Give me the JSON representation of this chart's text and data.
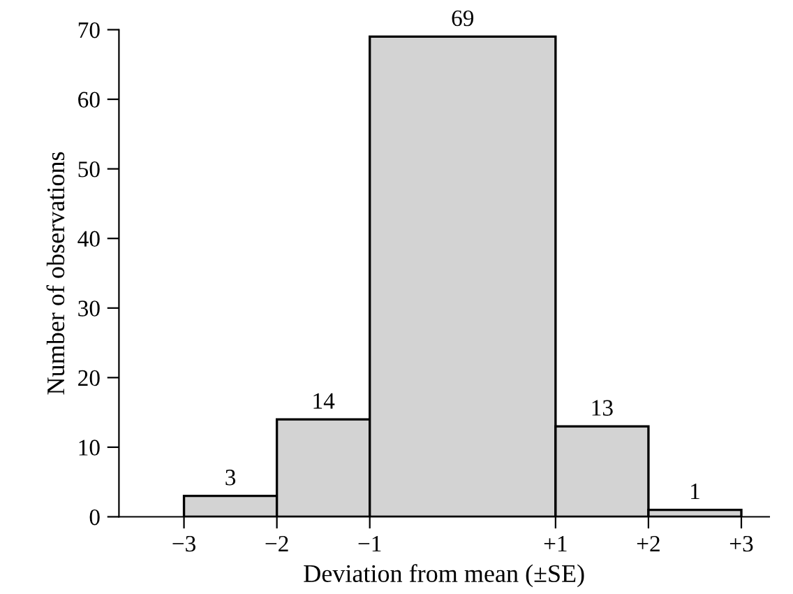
{
  "chart_data": {
    "type": "histogram",
    "xlabel": "Deviation from mean (±SE)",
    "ylabel": "Number of observations",
    "bins": [
      -3,
      -2,
      -1,
      1,
      2,
      3
    ],
    "values": [
      3,
      14,
      69,
      13,
      1
    ],
    "color": "#d3d3d3",
    "data_labels": true,
    "xlim": [
      -3.7,
      3.3
    ],
    "xticks": [
      {
        "value": -3,
        "label": "−3"
      },
      {
        "value": -2,
        "label": "−2"
      },
      {
        "value": -1,
        "label": "−1"
      },
      {
        "value": 1,
        "label": "+1"
      },
      {
        "value": 2,
        "label": "+2"
      },
      {
        "value": 3,
        "label": "+3"
      }
    ],
    "ylim": [
      0,
      70
    ],
    "yticks": [
      0,
      10,
      20,
      30,
      40,
      50,
      60,
      70
    ],
    "grid": false,
    "legend": false
  }
}
